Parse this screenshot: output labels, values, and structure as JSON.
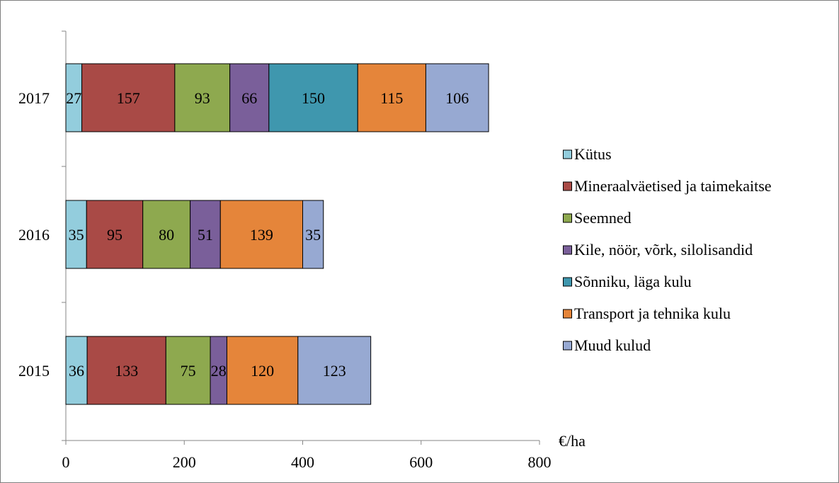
{
  "chart_data": {
    "type": "bar",
    "orientation": "horizontal",
    "stacked": true,
    "categories": [
      "2017",
      "2016",
      "2015"
    ],
    "series": [
      {
        "name": "Kütus",
        "color": "#93CDDD",
        "values": [
          27,
          35,
          36
        ]
      },
      {
        "name": "Mineraalväetised ja taimekaitse",
        "color": "#A94A46",
        "values": [
          157,
          95,
          133
        ]
      },
      {
        "name": "Seemned",
        "color": "#8EA94F",
        "values": [
          93,
          80,
          75
        ]
      },
      {
        "name": "Kile, nöör, võrk, silolisandid",
        "color": "#7A5F9A",
        "values": [
          66,
          51,
          28
        ]
      },
      {
        "name": "Sõnniku, läga kulu",
        "color": "#3F97AE",
        "values": [
          150,
          null,
          null
        ]
      },
      {
        "name": "Transport ja tehnika kulu",
        "color": "#E5853A",
        "values": [
          115,
          139,
          120
        ]
      },
      {
        "name": "Muud kulud",
        "color": "#97A9D2",
        "values": [
          106,
          35,
          123
        ]
      }
    ],
    "xlim": [
      0,
      800
    ],
    "xticks": [
      "0",
      "200",
      "400",
      "600",
      "800"
    ],
    "xlabel": "€/ha",
    "ylabel": "",
    "title": "",
    "legend_position": "right",
    "grid": false
  }
}
